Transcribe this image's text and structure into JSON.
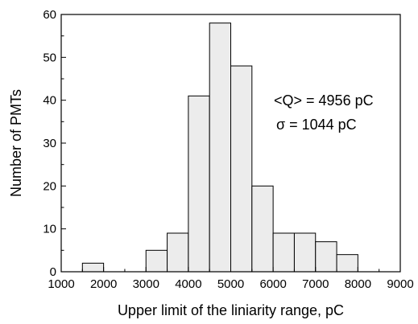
{
  "chart_data": {
    "type": "bar",
    "title": "",
    "xlabel": "Upper limit of the liniarity range, pC",
    "ylabel": "Number of PMTs",
    "xlim": [
      1000,
      9000
    ],
    "ylim": [
      0,
      60
    ],
    "x_ticks": [
      "1000",
      "2000",
      "3000",
      "4000",
      "5000",
      "6000",
      "7000",
      "8000",
      "9000"
    ],
    "y_ticks": [
      "0",
      "10",
      "20",
      "30",
      "40",
      "50",
      "60"
    ],
    "bin_width": 500,
    "bins": [
      {
        "start": 1500,
        "end": 2000,
        "count": 2
      },
      {
        "start": 3000,
        "end": 3500,
        "count": 5
      },
      {
        "start": 3500,
        "end": 4000,
        "count": 9
      },
      {
        "start": 4000,
        "end": 4500,
        "count": 41
      },
      {
        "start": 4500,
        "end": 5000,
        "count": 58
      },
      {
        "start": 5000,
        "end": 5500,
        "count": 48
      },
      {
        "start": 5500,
        "end": 6000,
        "count": 20
      },
      {
        "start": 6000,
        "end": 6500,
        "count": 9
      },
      {
        "start": 6500,
        "end": 7000,
        "count": 9
      },
      {
        "start": 7000,
        "end": 7500,
        "count": 7
      },
      {
        "start": 7500,
        "end": 8000,
        "count": 4
      }
    ],
    "bar_fill": "#ececec",
    "bar_stroke": "#000000",
    "grid": false,
    "legend": "none",
    "annotations": [
      "<Q> = 4956 pC",
      "σ = 1044 pC"
    ]
  }
}
